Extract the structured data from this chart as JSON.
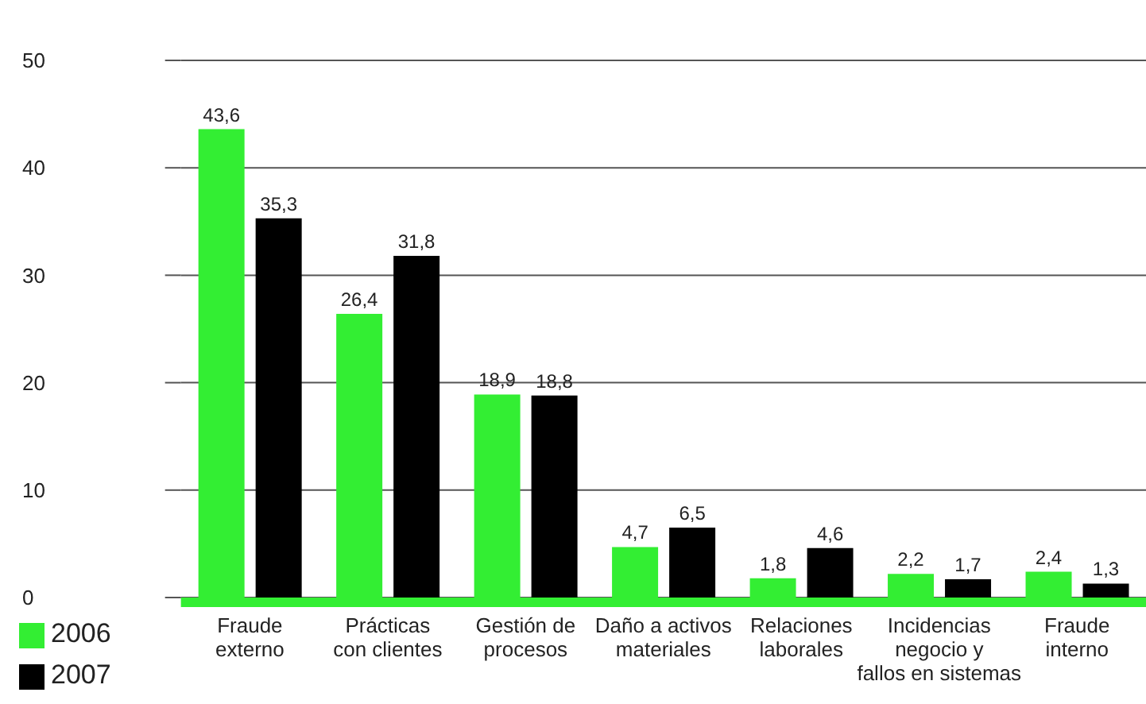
{
  "chart_data": {
    "type": "bar",
    "categories": [
      "Fraude\nexterno",
      "Prácticas\ncon clientes",
      "Gestión de\nprocesos",
      "Daño a activos\nmateriales",
      "Relaciones\nlaborales",
      "Incidencias\nnegocio y\nfallos en sistemas",
      "Fraude\ninterno"
    ],
    "series": [
      {
        "name": "2006",
        "color": "#33ee33",
        "values": [
          43.6,
          26.4,
          18.9,
          4.7,
          1.8,
          2.2,
          2.4
        ]
      },
      {
        "name": "2007",
        "color": "#000000",
        "values": [
          35.3,
          31.8,
          18.8,
          6.5,
          4.6,
          1.7,
          1.3
        ]
      }
    ],
    "value_labels": [
      [
        "43,6",
        "26,4",
        "18,9",
        "4,7",
        "1,8",
        "2,2",
        "2,4"
      ],
      [
        "35,3",
        "31,8",
        "18,8",
        "6,5",
        "4,6",
        "1,7",
        "1,3"
      ]
    ],
    "ylim": [
      0,
      50
    ],
    "yticks": [
      0,
      10,
      20,
      30,
      40,
      50
    ],
    "grid": "y",
    "legend": "bottom left"
  }
}
